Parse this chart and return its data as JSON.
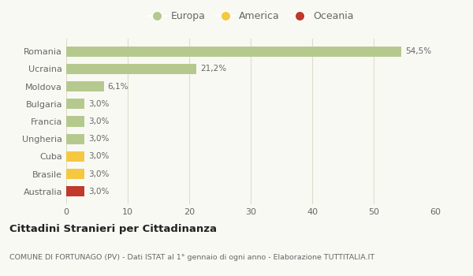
{
  "categories": [
    "Australia",
    "Brasile",
    "Cuba",
    "Ungheria",
    "Francia",
    "Bulgaria",
    "Moldova",
    "Ucraina",
    "Romania"
  ],
  "values": [
    3.0,
    3.0,
    3.0,
    3.0,
    3.0,
    3.0,
    6.1,
    21.2,
    54.5
  ],
  "labels": [
    "3,0%",
    "3,0%",
    "3,0%",
    "3,0%",
    "3,0%",
    "3,0%",
    "6,1%",
    "21,2%",
    "54,5%"
  ],
  "colors": [
    "#c0392b",
    "#f5c842",
    "#f5c842",
    "#b5c98e",
    "#b5c98e",
    "#b5c98e",
    "#b5c98e",
    "#b5c98e",
    "#b5c98e"
  ],
  "legend": [
    {
      "label": "Europa",
      "color": "#b5c98e"
    },
    {
      "label": "America",
      "color": "#f5c842"
    },
    {
      "label": "Oceania",
      "color": "#c0392b"
    }
  ],
  "xlim": [
    0,
    60
  ],
  "xticks": [
    0,
    10,
    20,
    30,
    40,
    50,
    60
  ],
  "title": "Cittadini Stranieri per Cittadinanza",
  "subtitle": "COMUNE DI FORTUNAGO (PV) - Dati ISTAT al 1° gennaio di ogni anno - Elaborazione TUTTITALIA.IT",
  "bg_color": "#f9f9f4",
  "grid_color": "#ddddcc"
}
